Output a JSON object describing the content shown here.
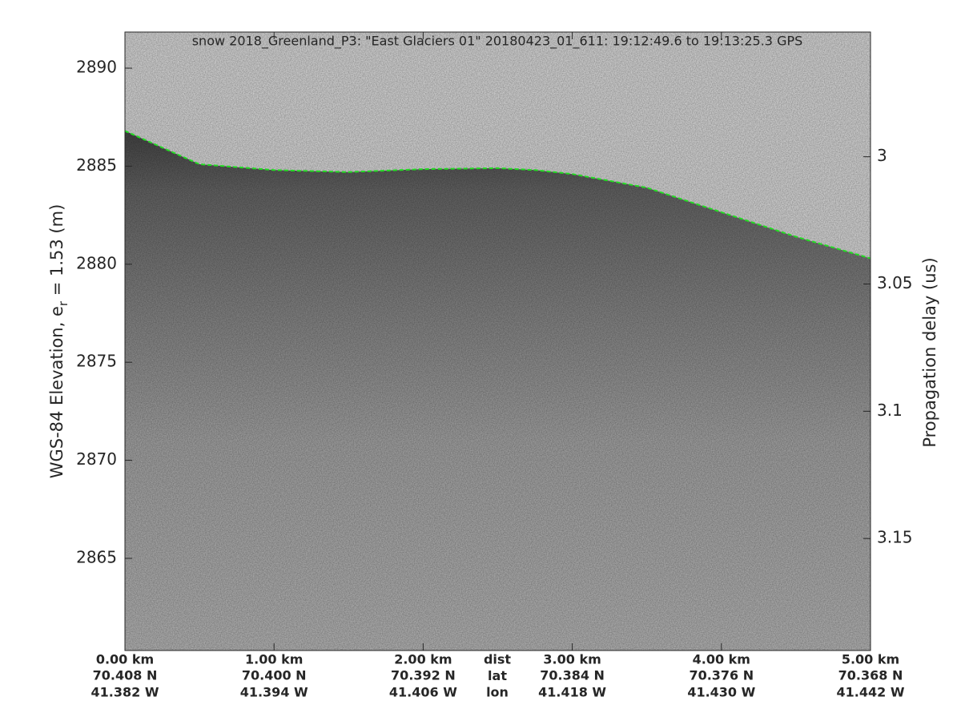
{
  "chart_data": {
    "type": "echogram",
    "title": "snow 2018_Greenland_P3: \"East Glaciers 01\"  20180423_01_611: 19:12:49.6 to 19:13:25.3 GPS",
    "ylabel": [
      "WGS-84 Elevation, e",
      "r",
      " = 1.53 (m)"
    ],
    "y2label": "Propagation delay (us)",
    "xlim": [
      0,
      5
    ],
    "xticks": [
      {
        "value": 0,
        "label": "0.00 km"
      },
      {
        "value": 1,
        "label": "1.00 km"
      },
      {
        "value": 2,
        "label": "2.00 km"
      },
      {
        "value": 3,
        "label": "3.00 km"
      },
      {
        "value": 4,
        "label": "4.00 km"
      },
      {
        "value": 5,
        "label": "5.00 km"
      }
    ],
    "x_lat_labels": [
      "70.408 N",
      "70.400 N",
      "70.392 N",
      "70.384 N",
      "70.376 N",
      "70.368 N"
    ],
    "x_lon_labels": [
      "41.382 W",
      "41.394 W",
      "41.406 W",
      "41.418 W",
      "41.430 W",
      "41.442 W"
    ],
    "x_row_labels": [
      "dist",
      "lat",
      "lon"
    ],
    "ylim": [
      2860.3,
      2891.84
    ],
    "yticks": [
      2865,
      2870,
      2875,
      2880,
      2885,
      2890
    ],
    "y2lim": [
      2.951,
      3.194
    ],
    "y2_reversed": true,
    "y2ticks": [
      3,
      3.05,
      3.1,
      3.15
    ],
    "series": [
      {
        "name": "surface",
        "color": "#22dd22",
        "x": [
          0,
          0.5,
          1,
          1.5,
          2,
          2.5,
          2.75,
          3,
          3.5,
          4,
          4.5,
          5
        ],
        "values": [
          2886.8,
          2885.1,
          2884.8,
          2884.7,
          2884.85,
          2884.9,
          2884.8,
          2884.6,
          2883.9,
          2882.65,
          2881.4,
          2880.3
        ]
      }
    ]
  }
}
